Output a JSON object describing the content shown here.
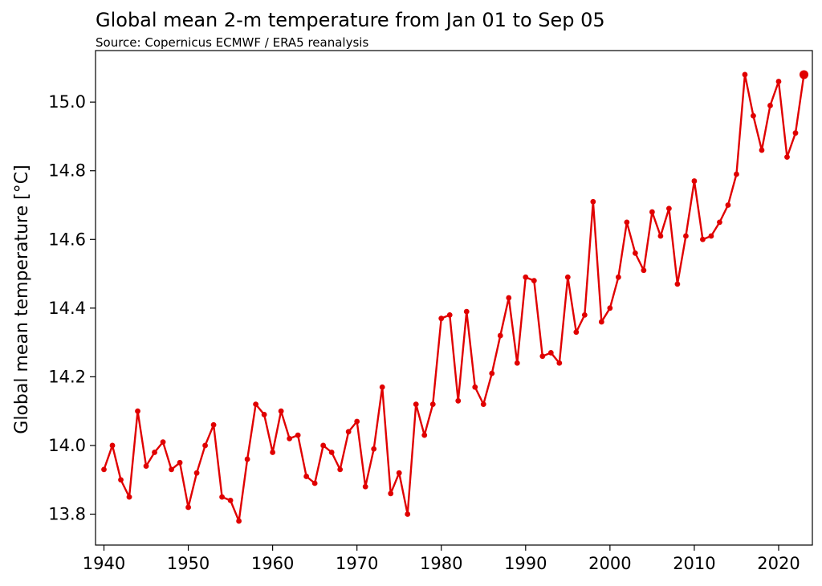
{
  "chart_data": {
    "type": "line",
    "title": "Global mean 2-m temperature from Jan 01 to Sep 05",
    "subtitle": "Source: Copernicus ECMWF / ERA5 reanalysis",
    "xlabel": "",
    "ylabel": "Global mean temperature [°C]",
    "xlim": [
      1939,
      2024
    ],
    "ylim": [
      13.71,
      15.15
    ],
    "xticks": [
      1940,
      1950,
      1960,
      1970,
      1980,
      1990,
      2000,
      2010,
      2020
    ],
    "yticks": [
      13.8,
      14.0,
      14.2,
      14.4,
      14.6,
      14.8,
      15.0
    ],
    "ytick_labels": [
      "13.8",
      "14.0",
      "14.2",
      "14.4",
      "14.6",
      "14.8",
      "15.0"
    ],
    "series_color": "#e00000",
    "highlight_last_point": true,
    "x": [
      1940,
      1941,
      1942,
      1943,
      1944,
      1945,
      1946,
      1947,
      1948,
      1949,
      1950,
      1951,
      1952,
      1953,
      1954,
      1955,
      1956,
      1957,
      1958,
      1959,
      1960,
      1961,
      1962,
      1963,
      1964,
      1965,
      1966,
      1967,
      1968,
      1969,
      1970,
      1971,
      1972,
      1973,
      1974,
      1975,
      1976,
      1977,
      1978,
      1979,
      1980,
      1981,
      1982,
      1983,
      1984,
      1985,
      1986,
      1987,
      1988,
      1989,
      1990,
      1991,
      1992,
      1993,
      1994,
      1995,
      1996,
      1997,
      1998,
      1999,
      2000,
      2001,
      2002,
      2003,
      2004,
      2005,
      2006,
      2007,
      2008,
      2009,
      2010,
      2011,
      2012,
      2013,
      2014,
      2015,
      2016,
      2017,
      2018,
      2019,
      2020,
      2021,
      2022,
      2023
    ],
    "y": [
      13.93,
      14.0,
      13.9,
      13.85,
      14.1,
      13.94,
      13.98,
      14.01,
      13.93,
      13.95,
      13.82,
      13.92,
      14.0,
      14.06,
      13.85,
      13.84,
      13.78,
      13.96,
      14.12,
      14.09,
      13.98,
      14.1,
      14.02,
      14.03,
      13.91,
      13.89,
      14.0,
      13.98,
      13.93,
      14.04,
      14.07,
      13.88,
      13.99,
      14.17,
      13.86,
      13.92,
      13.8,
      14.12,
      14.03,
      14.12,
      14.37,
      14.38,
      14.13,
      14.39,
      14.17,
      14.12,
      14.21,
      14.32,
      14.43,
      14.24,
      14.49,
      14.48,
      14.26,
      14.27,
      14.24,
      14.49,
      14.33,
      14.38,
      14.71,
      14.36,
      14.4,
      14.49,
      14.65,
      14.56,
      14.51,
      14.68,
      14.61,
      14.69,
      14.47,
      14.61,
      14.77,
      14.6,
      14.61,
      14.65,
      14.7,
      14.79,
      15.08,
      14.96,
      14.86,
      14.99,
      15.06,
      14.84,
      14.91,
      15.08
    ]
  }
}
